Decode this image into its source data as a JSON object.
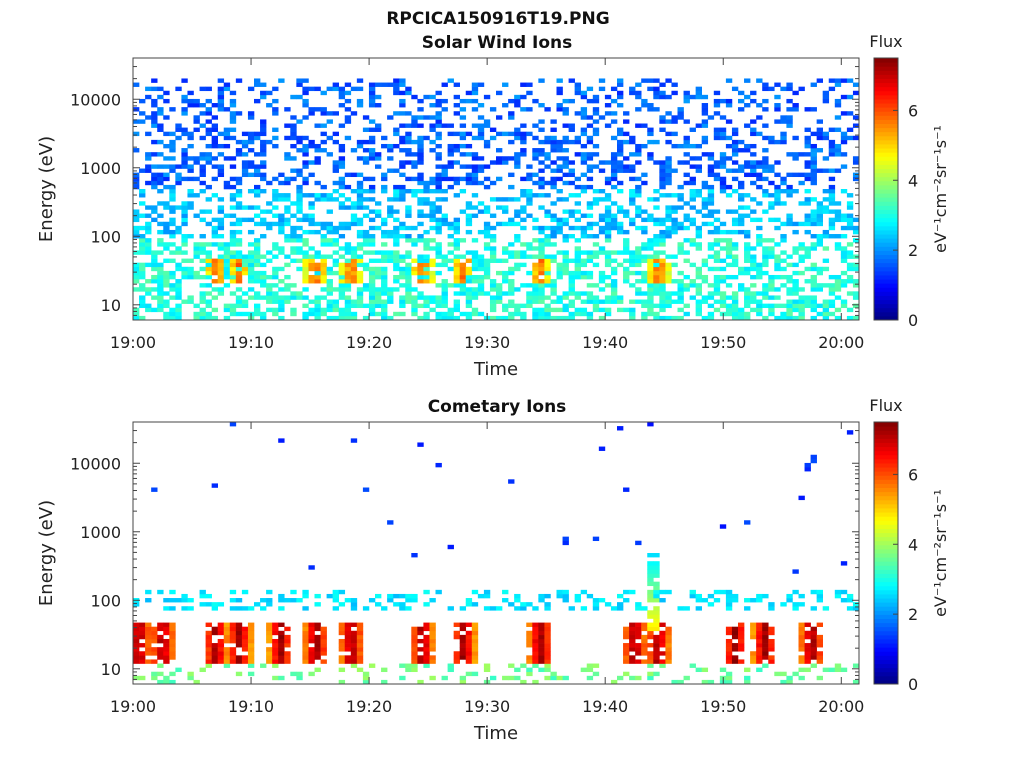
{
  "page": {
    "title": "RPCICA150916T19.PNG"
  },
  "chart_data": [
    {
      "type": "heatmap",
      "title": "Solar Wind Ions",
      "xlabel": "Time",
      "ylabel": "Energy (eV)",
      "x_tick_labels": [
        "19:00",
        "19:10",
        "19:20",
        "19:30",
        "19:40",
        "19:50",
        "20:00"
      ],
      "x_ticks_minutes": [
        0,
        10,
        20,
        30,
        40,
        50,
        60
      ],
      "xlim_minutes": [
        0,
        61.5
      ],
      "yscale": "log",
      "ylim": [
        6,
        40000
      ],
      "y_ticks": [
        10,
        100,
        1000,
        10000
      ],
      "y_tick_labels": [
        "10",
        "100",
        "1000",
        "10000"
      ],
      "colorbar": {
        "title": "Flux",
        "label": "eV⁻¹cm⁻²sr⁻¹s⁻¹",
        "range": [
          0,
          7.5
        ],
        "ticks": [
          0,
          2,
          4,
          6
        ],
        "tick_labels": [
          "0",
          "2",
          "4",
          "6"
        ],
        "colormap": "jet"
      },
      "features": [
        {
          "description": "broad background band",
          "energy_range": [
            6,
            20000
          ],
          "flux_typical": 1.8
        },
        {
          "description": "low-energy enhancements",
          "energy_range": [
            20,
            45
          ],
          "times_minutes": [
            7,
            9,
            15.5,
            18.5,
            24.5,
            28,
            34.5,
            44.5
          ],
          "flux_peak": 5.5
        }
      ]
    },
    {
      "type": "heatmap",
      "title": "Cometary Ions",
      "xlabel": "Time",
      "ylabel": "Energy (eV)",
      "x_tick_labels": [
        "19:00",
        "19:10",
        "19:20",
        "19:30",
        "19:40",
        "19:50",
        "20:00"
      ],
      "x_ticks_minutes": [
        0,
        10,
        20,
        30,
        40,
        50,
        60
      ],
      "xlim_minutes": [
        0,
        61.5
      ],
      "yscale": "log",
      "ylim": [
        6,
        40000
      ],
      "y_ticks": [
        10,
        100,
        1000,
        10000
      ],
      "y_tick_labels": [
        "10",
        "100",
        "1000",
        "10000"
      ],
      "colorbar": {
        "title": "Flux",
        "label": "eV⁻¹cm⁻²sr⁻¹s⁻¹",
        "range": [
          0,
          7.5
        ],
        "ticks": [
          0,
          2,
          4,
          6
        ],
        "tick_labels": [
          "0",
          "2",
          "4",
          "6"
        ],
        "colormap": "jet"
      },
      "features": [
        {
          "description": "intense cometary ion bursts",
          "energy_range": [
            12,
            45
          ],
          "times_minutes": [
            0.5,
            2.5,
            7,
            9,
            12.5,
            15.5,
            18.5,
            24.5,
            28,
            34.5,
            42.5,
            44.5,
            51,
            53.5,
            57.5
          ],
          "flux_peak": 7.2
        },
        {
          "description": "energized spike",
          "time_minutes": 44.2,
          "energy_range": [
            30,
            500
          ],
          "flux_peak": 5
        },
        {
          "description": "sparse background counts",
          "energy_range": [
            70,
            150
          ],
          "flux_typical": 2.5
        }
      ]
    }
  ]
}
